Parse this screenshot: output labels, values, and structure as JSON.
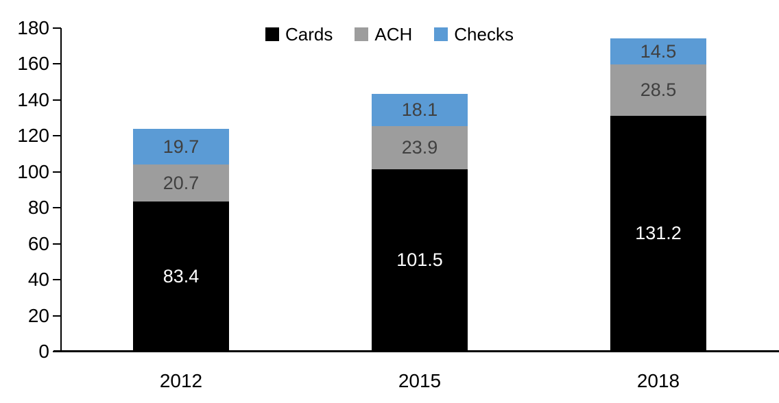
{
  "chart_data": {
    "type": "bar",
    "stacked": true,
    "title": "",
    "xlabel": "",
    "ylabel": "",
    "categories": [
      "2012",
      "2015",
      "2018"
    ],
    "series": [
      {
        "name": "Cards",
        "color": "#000000",
        "label_color": "#ffffff",
        "values": [
          83.4,
          101.5,
          131.2
        ]
      },
      {
        "name": "ACH",
        "color": "#9d9d9d",
        "label_color": "#404040",
        "values": [
          20.7,
          23.9,
          28.5
        ]
      },
      {
        "name": "Checks",
        "color": "#5b9bd5",
        "label_color": "#404040",
        "values": [
          19.7,
          18.1,
          14.5
        ]
      }
    ],
    "totals": [
      123.8,
      143.5,
      174.2
    ],
    "ylim": [
      0,
      180
    ],
    "ytick_step": 20,
    "ytick_labels": [
      "0",
      "20",
      "40",
      "60",
      "80",
      "100",
      "120",
      "140",
      "160",
      "180"
    ],
    "legend": {
      "position": "top-center",
      "entries": [
        "Cards",
        "ACH",
        "Checks"
      ]
    },
    "grid": false,
    "axis_color": "#000000",
    "background_color": "#ffffff"
  }
}
